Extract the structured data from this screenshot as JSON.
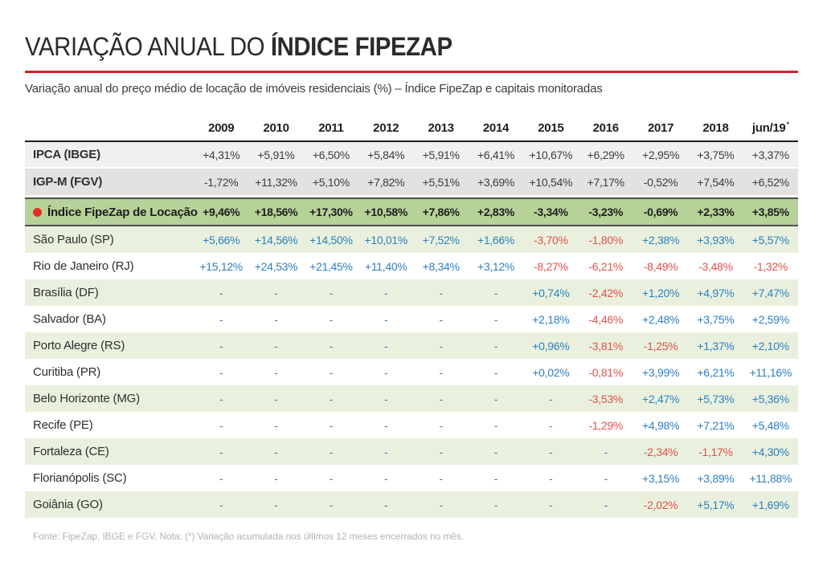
{
  "page": {
    "title_regular": "VARIAÇÃO ANUAL DO ",
    "title_bold": "ÍNDICE FIPEZAP"
  },
  "colors": {
    "accent_red": "#c5262c",
    "bullet_red": "#e62e24",
    "positive_blue": "#2e7fc2",
    "negative_red": "#e2504c",
    "fipezap_row_green": "#b7d299",
    "city_row_green": "#e9f1de",
    "ipca_row_gray": "#f1f0ef",
    "igpm_row_gray": "#e3e2e1"
  },
  "chart_data": {
    "type": "table",
    "title": "VARIAÇÃO ANUAL DO ÍNDICE FIPEZAP",
    "subtitle": "Variação anual do preço médio de locação de imóveis residenciais (%) – Índice FipeZap e capitais monitoradas",
    "source_note": "Fonte: FipeZap, IBGE e FGV. Nota: (*) Variação acumulada nos últimos 12 meses encerrados no mês.",
    "columns": [
      {
        "label": "2009"
      },
      {
        "label": "2010"
      },
      {
        "label": "2011"
      },
      {
        "label": "2012"
      },
      {
        "label": "2013"
      },
      {
        "label": "2014"
      },
      {
        "label": "2015"
      },
      {
        "label": "2016"
      },
      {
        "label": "2017"
      },
      {
        "label": "2018"
      },
      {
        "label": "jun/19",
        "sup": "*"
      }
    ],
    "rows": [
      {
        "label": "IPCA (IBGE)",
        "kind": "ipca",
        "values": [
          "+4,31%",
          "+5,91%",
          "+6,50%",
          "+5,84%",
          "+5,91%",
          "+6,41%",
          "+10,67%",
          "+6,29%",
          "+2,95%",
          "+3,75%",
          "+3,37%"
        ]
      },
      {
        "label": "IGP-M (FGV)",
        "kind": "igpm",
        "values": [
          "-1,72%",
          "+11,32%",
          "+5,10%",
          "+7,82%",
          "+5,51%",
          "+3,69%",
          "+10,54%",
          "+7,17%",
          "-0,52%",
          "+7,54%",
          "+6,52%"
        ]
      },
      {
        "label": "Índice FipeZap de Locação",
        "kind": "fipezap",
        "values": [
          "+9,46%",
          "+18,56%",
          "+17,30%",
          "+10,58%",
          "+7,86%",
          "+2,83%",
          "-3,34%",
          "-3,23%",
          "-0,69%",
          "+2,33%",
          "+3,85%"
        ]
      },
      {
        "label": "São Paulo (SP)",
        "kind": "city",
        "values": [
          "+5,66%",
          "+14,56%",
          "+14,50%",
          "+10,01%",
          "+7,52%",
          "+1,66%",
          "-3,70%",
          "-1,80%",
          "+2,38%",
          "+3,93%",
          "+5,57%"
        ]
      },
      {
        "label": "Rio de Janeiro (RJ)",
        "kind": "city",
        "values": [
          "+15,12%",
          "+24,53%",
          "+21,45%",
          "+11,40%",
          "+8,34%",
          "+3,12%",
          "-8,27%",
          "-6,21%",
          "-8,49%",
          "-3,48%",
          "-1,32%"
        ]
      },
      {
        "label": "Brasília (DF)",
        "kind": "city",
        "values": [
          "-",
          "-",
          "-",
          "-",
          "-",
          "-",
          "+0,74%",
          "-2,42%",
          "+1,20%",
          "+4,97%",
          "+7,47%"
        ]
      },
      {
        "label": "Salvador (BA)",
        "kind": "city",
        "values": [
          "-",
          "-",
          "-",
          "-",
          "-",
          "-",
          "+2,18%",
          "-4,46%",
          "+2,48%",
          "+3,75%",
          "+2,59%"
        ]
      },
      {
        "label": "Porto Alegre (RS)",
        "kind": "city",
        "values": [
          "-",
          "-",
          "-",
          "-",
          "-",
          "-",
          "+0,96%",
          "-3,81%",
          "-1,25%",
          "+1,37%",
          "+2,10%"
        ]
      },
      {
        "label": "Curitiba (PR)",
        "kind": "city",
        "values": [
          "-",
          "-",
          "-",
          "-",
          "-",
          "-",
          "+0,02%",
          "-0,81%",
          "+3,99%",
          "+6,21%",
          "+11,16%"
        ]
      },
      {
        "label": "Belo Horizonte (MG)",
        "kind": "city",
        "values": [
          "-",
          "-",
          "-",
          "-",
          "-",
          "-",
          "-",
          "-3,53%",
          "+2,47%",
          "+5,73%",
          "+5,36%"
        ]
      },
      {
        "label": "Recife (PE)",
        "kind": "city",
        "values": [
          "-",
          "-",
          "-",
          "-",
          "-",
          "-",
          "-",
          "-1,29%",
          "+4,98%",
          "+7,21%",
          "+5,48%"
        ]
      },
      {
        "label": "Fortaleza (CE)",
        "kind": "city",
        "values": [
          "-",
          "-",
          "-",
          "-",
          "-",
          "-",
          "-",
          "-",
          "-2,34%",
          "-1,17%",
          "+4,30%"
        ]
      },
      {
        "label": "Florianópolis (SC)",
        "kind": "city",
        "values": [
          "-",
          "-",
          "-",
          "-",
          "-",
          "-",
          "-",
          "-",
          "+3,15%",
          "+3,89%",
          "+11,88%"
        ]
      },
      {
        "label": "Goiânia (GO)",
        "kind": "city",
        "values": [
          "-",
          "-",
          "-",
          "-",
          "-",
          "-",
          "-",
          "-",
          "-2,02%",
          "+5,17%",
          "+1,69%"
        ]
      }
    ]
  }
}
